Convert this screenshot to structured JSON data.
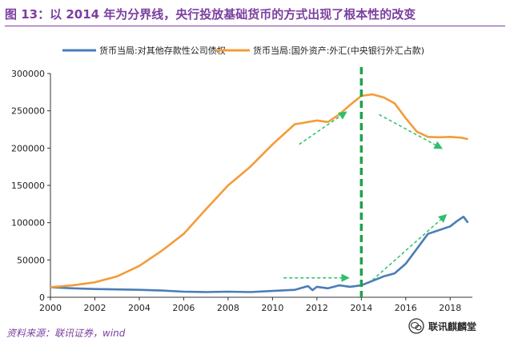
{
  "header": {
    "figure_label": "图 13：",
    "title_text": "以 2014 年为分界线，央行投放基础货币的方式出现了根本性的改变"
  },
  "footer": {
    "source": "资料来源：联讯证券，wind",
    "watermark": "联讯麒麟堂"
  },
  "colors": {
    "title": "#7b3fa0",
    "series_claims": "#4a7db8",
    "series_fx": "#f39c3a",
    "divider": "#1fa24a",
    "arrows": "#2fbf6a"
  },
  "chart_data": {
    "type": "line",
    "title": "以 2014 年为分界线，央行投放基础货币的方式出现了根本性的改变",
    "xlabel": "",
    "ylabel": "",
    "xlim": [
      2000,
      2019
    ],
    "ylim": [
      0,
      300000
    ],
    "x_ticks": [
      "2000",
      "2002",
      "2004",
      "2006",
      "2008",
      "2010",
      "2012",
      "2014",
      "2016",
      "2018"
    ],
    "y_ticks": [
      "0",
      "50000",
      "100000",
      "150000",
      "200000",
      "250000",
      "300000"
    ],
    "grid": false,
    "legend_position": "top",
    "divider_x": 2014,
    "series": [
      {
        "name": "货币当局:对其他存款性公司债权",
        "color": "#4a7db8",
        "points": [
          [
            2000,
            13500
          ],
          [
            2001,
            12000
          ],
          [
            2002,
            11000
          ],
          [
            2003,
            10500
          ],
          [
            2004,
            10000
          ],
          [
            2005,
            9000
          ],
          [
            2006,
            7500
          ],
          [
            2007,
            7000
          ],
          [
            2008,
            7500
          ],
          [
            2009,
            7000
          ],
          [
            2010,
            8500
          ],
          [
            2011,
            10000
          ],
          [
            2011.6,
            15000
          ],
          [
            2011.8,
            9500
          ],
          [
            2012,
            14000
          ],
          [
            2012.5,
            12000
          ],
          [
            2013,
            16000
          ],
          [
            2013.5,
            14000
          ],
          [
            2014,
            16000
          ],
          [
            2014.5,
            22000
          ],
          [
            2015,
            28000
          ],
          [
            2015.5,
            32000
          ],
          [
            2016,
            45000
          ],
          [
            2016.5,
            65000
          ],
          [
            2017,
            85000
          ],
          [
            2017.5,
            90000
          ],
          [
            2018,
            95000
          ],
          [
            2018.3,
            102000
          ],
          [
            2018.6,
            108000
          ],
          [
            2018.8,
            100000
          ]
        ]
      },
      {
        "name": "货币当局:国外资产:外汇(中央银行外汇占款)",
        "color": "#f39c3a",
        "points": [
          [
            2000,
            13500
          ],
          [
            2001,
            16000
          ],
          [
            2002,
            20000
          ],
          [
            2003,
            28000
          ],
          [
            2004,
            42000
          ],
          [
            2005,
            62000
          ],
          [
            2006,
            85000
          ],
          [
            2007,
            118000
          ],
          [
            2008,
            150000
          ],
          [
            2009,
            175000
          ],
          [
            2010,
            205000
          ],
          [
            2011,
            232000
          ],
          [
            2012,
            237000
          ],
          [
            2012.5,
            235000
          ],
          [
            2013,
            245000
          ],
          [
            2013.5,
            258000
          ],
          [
            2014,
            270000
          ],
          [
            2014.5,
            272000
          ],
          [
            2015,
            268000
          ],
          [
            2015.5,
            260000
          ],
          [
            2016,
            240000
          ],
          [
            2016.5,
            222000
          ],
          [
            2017,
            215000
          ],
          [
            2017.5,
            214500
          ],
          [
            2018,
            215000
          ],
          [
            2018.5,
            214000
          ],
          [
            2018.8,
            212000
          ]
        ]
      }
    ],
    "annotations": [
      {
        "type": "arrow",
        "from": [
          2011.2,
          205000
        ],
        "to": [
          2013.3,
          248000
        ]
      },
      {
        "type": "arrow",
        "from": [
          2014.8,
          245000
        ],
        "to": [
          2017.6,
          200000
        ]
      },
      {
        "type": "arrow",
        "from": [
          2010.5,
          26000
        ],
        "to": [
          2013.4,
          26000
        ]
      },
      {
        "type": "arrow",
        "from": [
          2014.5,
          23000
        ],
        "to": [
          2017.8,
          110000
        ]
      }
    ]
  }
}
